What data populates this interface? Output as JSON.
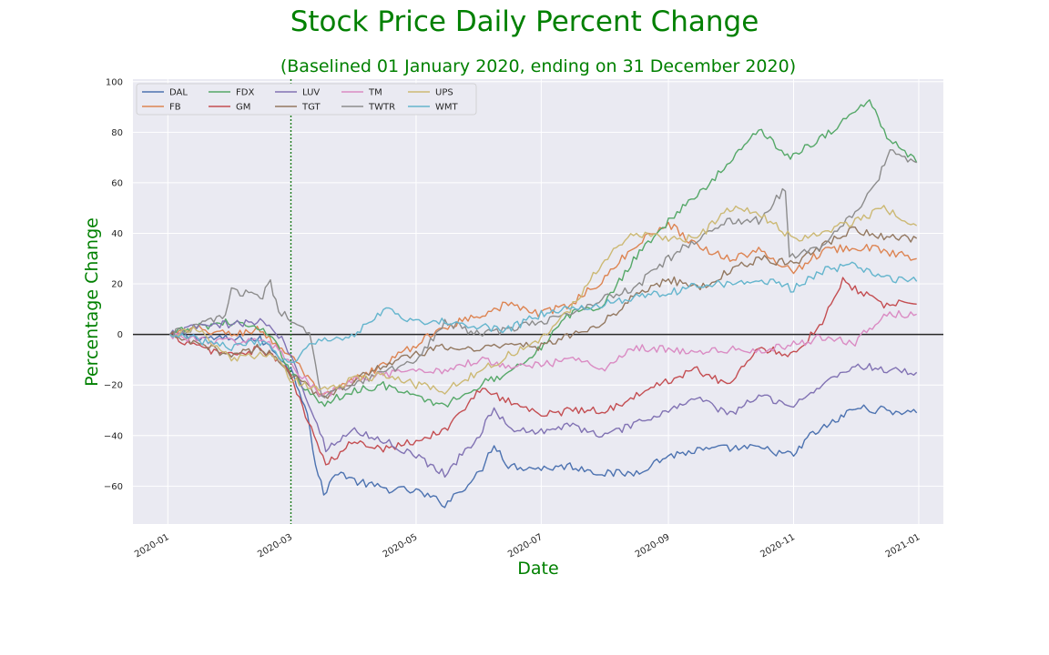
{
  "chart_data": {
    "type": "line",
    "title": "Stock Price Daily Percent Change",
    "subtitle": "(Baselined 01 January 2020, ending on 31 December 2020)",
    "xlabel": "Date",
    "ylabel": "Percentage Change",
    "x_ticks": [
      "2020-01",
      "2020-03",
      "2020-05",
      "2020-07",
      "2020-09",
      "2020-11",
      "2021-01"
    ],
    "y_ticks": [
      100,
      80,
      60,
      40,
      20,
      0,
      -20,
      -40,
      -60
    ],
    "ylim": [
      -75,
      101
    ],
    "xlim": [
      "2019-12-15",
      "2021-01-13"
    ],
    "grid": true,
    "legend_position": "top-left",
    "reference_lines": {
      "horizontal_y": 0,
      "vertical_date": "2020-03-01"
    },
    "series": [
      {
        "name": "DAL",
        "color": "#4c72b0",
        "points": [
          [
            "2020-01-02",
            0
          ],
          [
            "2020-01-15",
            -1
          ],
          [
            "2020-02-01",
            -2
          ],
          [
            "2020-02-15",
            -2
          ],
          [
            "2020-02-24",
            -8
          ],
          [
            "2020-03-01",
            -14
          ],
          [
            "2020-03-09",
            -30
          ],
          [
            "2020-03-13",
            -52
          ],
          [
            "2020-03-17",
            -63
          ],
          [
            "2020-03-24",
            -54
          ],
          [
            "2020-04-01",
            -58
          ],
          [
            "2020-04-15",
            -61
          ],
          [
            "2020-05-01",
            -62
          ],
          [
            "2020-05-15",
            -67
          ],
          [
            "2020-06-01",
            -55
          ],
          [
            "2020-06-08",
            -43
          ],
          [
            "2020-06-15",
            -52
          ],
          [
            "2020-07-01",
            -53
          ],
          [
            "2020-07-15",
            -52
          ],
          [
            "2020-08-01",
            -55
          ],
          [
            "2020-08-15",
            -55
          ],
          [
            "2020-09-01",
            -48
          ],
          [
            "2020-09-15",
            -46
          ],
          [
            "2020-10-01",
            -45
          ],
          [
            "2020-10-15",
            -45
          ],
          [
            "2020-11-01",
            -48
          ],
          [
            "2020-11-09",
            -40
          ],
          [
            "2020-11-20",
            -35
          ],
          [
            "2020-12-01",
            -29
          ],
          [
            "2020-12-15",
            -30
          ],
          [
            "2020-12-31",
            -31
          ]
        ]
      },
      {
        "name": "FB",
        "color": "#dd8452",
        "points": [
          [
            "2020-01-02",
            0
          ],
          [
            "2020-01-15",
            2
          ],
          [
            "2020-02-01",
            0
          ],
          [
            "2020-02-15",
            2
          ],
          [
            "2020-02-24",
            -5
          ],
          [
            "2020-03-01",
            -8
          ],
          [
            "2020-03-16",
            -25
          ],
          [
            "2020-04-01",
            -18
          ],
          [
            "2020-04-15",
            -12
          ],
          [
            "2020-05-01",
            -4
          ],
          [
            "2020-05-15",
            3
          ],
          [
            "2020-06-01",
            8
          ],
          [
            "2020-06-15",
            12
          ],
          [
            "2020-07-01",
            8
          ],
          [
            "2020-07-15",
            12
          ],
          [
            "2020-08-01",
            22
          ],
          [
            "2020-08-15",
            35
          ],
          [
            "2020-09-01",
            44
          ],
          [
            "2020-09-15",
            35
          ],
          [
            "2020-10-01",
            30
          ],
          [
            "2020-10-15",
            33
          ],
          [
            "2020-11-01",
            25
          ],
          [
            "2020-11-15",
            33
          ],
          [
            "2020-12-01",
            35
          ],
          [
            "2020-12-15",
            33
          ],
          [
            "2020-12-31",
            30
          ]
        ]
      },
      {
        "name": "FDX",
        "color": "#55a868",
        "points": [
          [
            "2020-01-02",
            0
          ],
          [
            "2020-01-15",
            3
          ],
          [
            "2020-02-01",
            5
          ],
          [
            "2020-02-15",
            2
          ],
          [
            "2020-02-24",
            -5
          ],
          [
            "2020-03-01",
            -15
          ],
          [
            "2020-03-16",
            -28
          ],
          [
            "2020-04-01",
            -22
          ],
          [
            "2020-04-15",
            -20
          ],
          [
            "2020-05-01",
            -25
          ],
          [
            "2020-05-15",
            -28
          ],
          [
            "2020-06-01",
            -20
          ],
          [
            "2020-06-15",
            -15
          ],
          [
            "2020-07-01",
            -5
          ],
          [
            "2020-07-15",
            8
          ],
          [
            "2020-08-01",
            12
          ],
          [
            "2020-08-15",
            30
          ],
          [
            "2020-09-01",
            45
          ],
          [
            "2020-09-15",
            55
          ],
          [
            "2020-10-01",
            68
          ],
          [
            "2020-10-15",
            82
          ],
          [
            "2020-10-29",
            70
          ],
          [
            "2020-11-15",
            78
          ],
          [
            "2020-12-01",
            88
          ],
          [
            "2020-12-08",
            93
          ],
          [
            "2020-12-15",
            80
          ],
          [
            "2020-12-31",
            68
          ]
        ]
      },
      {
        "name": "GM",
        "color": "#c44e52",
        "points": [
          [
            "2020-01-02",
            0
          ],
          [
            "2020-01-15",
            -5
          ],
          [
            "2020-02-01",
            -8
          ],
          [
            "2020-02-15",
            -6
          ],
          [
            "2020-02-24",
            -10
          ],
          [
            "2020-03-01",
            -17
          ],
          [
            "2020-03-18",
            -52
          ],
          [
            "2020-04-01",
            -42
          ],
          [
            "2020-04-15",
            -45
          ],
          [
            "2020-05-01",
            -42
          ],
          [
            "2020-05-15",
            -38
          ],
          [
            "2020-06-01",
            -22
          ],
          [
            "2020-06-15",
            -26
          ],
          [
            "2020-07-01",
            -32
          ],
          [
            "2020-07-15",
            -30
          ],
          [
            "2020-08-01",
            -30
          ],
          [
            "2020-08-15",
            -25
          ],
          [
            "2020-09-01",
            -18
          ],
          [
            "2020-09-15",
            -14
          ],
          [
            "2020-10-01",
            -20
          ],
          [
            "2020-10-15",
            -5
          ],
          [
            "2020-11-01",
            -8
          ],
          [
            "2020-11-15",
            5
          ],
          [
            "2020-11-25",
            22
          ],
          [
            "2020-12-01",
            18
          ],
          [
            "2020-12-15",
            12
          ],
          [
            "2020-12-31",
            12
          ]
        ]
      },
      {
        "name": "LUV",
        "color": "#8172b3",
        "points": [
          [
            "2020-01-02",
            0
          ],
          [
            "2020-01-15",
            3
          ],
          [
            "2020-02-01",
            4
          ],
          [
            "2020-02-15",
            5
          ],
          [
            "2020-02-24",
            0
          ],
          [
            "2020-03-01",
            -8
          ],
          [
            "2020-03-18",
            -45
          ],
          [
            "2020-04-01",
            -38
          ],
          [
            "2020-04-15",
            -42
          ],
          [
            "2020-05-01",
            -48
          ],
          [
            "2020-05-15",
            -55
          ],
          [
            "2020-06-01",
            -40
          ],
          [
            "2020-06-08",
            -28
          ],
          [
            "2020-06-15",
            -38
          ],
          [
            "2020-07-01",
            -38
          ],
          [
            "2020-07-15",
            -36
          ],
          [
            "2020-08-01",
            -40
          ],
          [
            "2020-08-15",
            -36
          ],
          [
            "2020-09-01",
            -30
          ],
          [
            "2020-09-15",
            -25
          ],
          [
            "2020-10-01",
            -32
          ],
          [
            "2020-10-15",
            -24
          ],
          [
            "2020-11-01",
            -28
          ],
          [
            "2020-11-15",
            -20
          ],
          [
            "2020-12-01",
            -12
          ],
          [
            "2020-12-15",
            -14
          ],
          [
            "2020-12-31",
            -15
          ]
        ]
      },
      {
        "name": "TGT",
        "color": "#937860",
        "points": [
          [
            "2020-01-02",
            0
          ],
          [
            "2020-01-15",
            -4
          ],
          [
            "2020-02-01",
            -8
          ],
          [
            "2020-02-15",
            -5
          ],
          [
            "2020-02-24",
            -10
          ],
          [
            "2020-03-01",
            -16
          ],
          [
            "2020-03-16",
            -25
          ],
          [
            "2020-04-01",
            -18
          ],
          [
            "2020-04-15",
            -12
          ],
          [
            "2020-05-01",
            -8
          ],
          [
            "2020-05-15",
            -5
          ],
          [
            "2020-06-01",
            -6
          ],
          [
            "2020-06-15",
            -3
          ],
          [
            "2020-07-01",
            -5
          ],
          [
            "2020-07-15",
            0
          ],
          [
            "2020-08-01",
            5
          ],
          [
            "2020-08-15",
            15
          ],
          [
            "2020-09-01",
            22
          ],
          [
            "2020-09-15",
            18
          ],
          [
            "2020-10-01",
            25
          ],
          [
            "2020-10-15",
            30
          ],
          [
            "2020-11-01",
            28
          ],
          [
            "2020-11-15",
            35
          ],
          [
            "2020-12-01",
            42
          ],
          [
            "2020-12-15",
            38
          ],
          [
            "2020-12-31",
            38
          ]
        ]
      },
      {
        "name": "TM",
        "color": "#da8bc3",
        "points": [
          [
            "2020-01-02",
            0
          ],
          [
            "2020-01-15",
            -2
          ],
          [
            "2020-02-01",
            -3
          ],
          [
            "2020-02-15",
            -2
          ],
          [
            "2020-02-24",
            -6
          ],
          [
            "2020-03-01",
            -12
          ],
          [
            "2020-03-16",
            -25
          ],
          [
            "2020-04-01",
            -18
          ],
          [
            "2020-04-15",
            -16
          ],
          [
            "2020-05-01",
            -15
          ],
          [
            "2020-05-15",
            -14
          ],
          [
            "2020-06-01",
            -10
          ],
          [
            "2020-06-15",
            -12
          ],
          [
            "2020-07-01",
            -12
          ],
          [
            "2020-07-15",
            -10
          ],
          [
            "2020-08-01",
            -13
          ],
          [
            "2020-08-15",
            -5
          ],
          [
            "2020-09-01",
            -6
          ],
          [
            "2020-09-15",
            -7
          ],
          [
            "2020-10-01",
            -6
          ],
          [
            "2020-10-15",
            -7
          ],
          [
            "2020-11-01",
            -4
          ],
          [
            "2020-11-15",
            -1
          ],
          [
            "2020-12-01",
            -3
          ],
          [
            "2020-12-15",
            8
          ],
          [
            "2020-12-31",
            8
          ]
        ]
      },
      {
        "name": "TWTR",
        "color": "#8c8c8c",
        "points": [
          [
            "2020-01-02",
            0
          ],
          [
            "2020-01-15",
            3
          ],
          [
            "2020-01-29",
            8
          ],
          [
            "2020-02-01",
            18
          ],
          [
            "2020-02-15",
            14
          ],
          [
            "2020-02-20",
            20
          ],
          [
            "2020-02-24",
            10
          ],
          [
            "2020-03-01",
            5
          ],
          [
            "2020-03-10",
            0
          ],
          [
            "2020-03-16",
            -25
          ],
          [
            "2020-04-01",
            -20
          ],
          [
            "2020-04-15",
            -15
          ],
          [
            "2020-05-01",
            -10
          ],
          [
            "2020-05-15",
            5
          ],
          [
            "2020-06-01",
            0
          ],
          [
            "2020-06-15",
            2
          ],
          [
            "2020-07-01",
            5
          ],
          [
            "2020-07-15",
            8
          ],
          [
            "2020-08-01",
            15
          ],
          [
            "2020-08-15",
            18
          ],
          [
            "2020-09-01",
            30
          ],
          [
            "2020-09-15",
            38
          ],
          [
            "2020-10-01",
            45
          ],
          [
            "2020-10-15",
            45
          ],
          [
            "2020-10-28",
            58
          ],
          [
            "2020-10-30",
            30
          ],
          [
            "2020-11-15",
            35
          ],
          [
            "2020-12-01",
            48
          ],
          [
            "2020-12-10",
            58
          ],
          [
            "2020-12-18",
            72
          ],
          [
            "2020-12-31",
            68
          ]
        ]
      },
      {
        "name": "UPS",
        "color": "#ccb974",
        "points": [
          [
            "2020-01-02",
            0
          ],
          [
            "2020-01-15",
            2
          ],
          [
            "2020-02-01",
            -10
          ],
          [
            "2020-02-15",
            -8
          ],
          [
            "2020-02-24",
            -10
          ],
          [
            "2020-03-01",
            -18
          ],
          [
            "2020-03-16",
            -22
          ],
          [
            "2020-04-01",
            -18
          ],
          [
            "2020-04-15",
            -16
          ],
          [
            "2020-05-01",
            -20
          ],
          [
            "2020-05-15",
            -22
          ],
          [
            "2020-06-01",
            -15
          ],
          [
            "2020-06-15",
            -8
          ],
          [
            "2020-07-01",
            -2
          ],
          [
            "2020-07-15",
            10
          ],
          [
            "2020-08-01",
            30
          ],
          [
            "2020-08-15",
            40
          ],
          [
            "2020-09-01",
            38
          ],
          [
            "2020-09-15",
            38
          ],
          [
            "2020-10-01",
            50
          ],
          [
            "2020-10-15",
            48
          ],
          [
            "2020-11-01",
            38
          ],
          [
            "2020-11-15",
            40
          ],
          [
            "2020-12-01",
            45
          ],
          [
            "2020-12-15",
            50
          ],
          [
            "2020-12-31",
            43
          ]
        ]
      },
      {
        "name": "WMT",
        "color": "#64b5cd",
        "points": [
          [
            "2020-01-02",
            0
          ],
          [
            "2020-01-15",
            -2
          ],
          [
            "2020-02-01",
            -5
          ],
          [
            "2020-02-15",
            -3
          ],
          [
            "2020-02-24",
            -8
          ],
          [
            "2020-03-01",
            -12
          ],
          [
            "2020-03-10",
            -5
          ],
          [
            "2020-03-16",
            -2
          ],
          [
            "2020-04-01",
            0
          ],
          [
            "2020-04-15",
            10
          ],
          [
            "2020-05-01",
            5
          ],
          [
            "2020-05-15",
            5
          ],
          [
            "2020-06-01",
            3
          ],
          [
            "2020-06-15",
            2
          ],
          [
            "2020-07-01",
            8
          ],
          [
            "2020-07-15",
            10
          ],
          [
            "2020-08-01",
            12
          ],
          [
            "2020-08-15",
            15
          ],
          [
            "2020-09-01",
            16
          ],
          [
            "2020-09-15",
            20
          ],
          [
            "2020-10-01",
            20
          ],
          [
            "2020-10-15",
            22
          ],
          [
            "2020-11-01",
            18
          ],
          [
            "2020-11-15",
            25
          ],
          [
            "2020-12-01",
            28
          ],
          [
            "2020-12-15",
            22
          ],
          [
            "2020-12-31",
            21
          ]
        ]
      }
    ]
  }
}
